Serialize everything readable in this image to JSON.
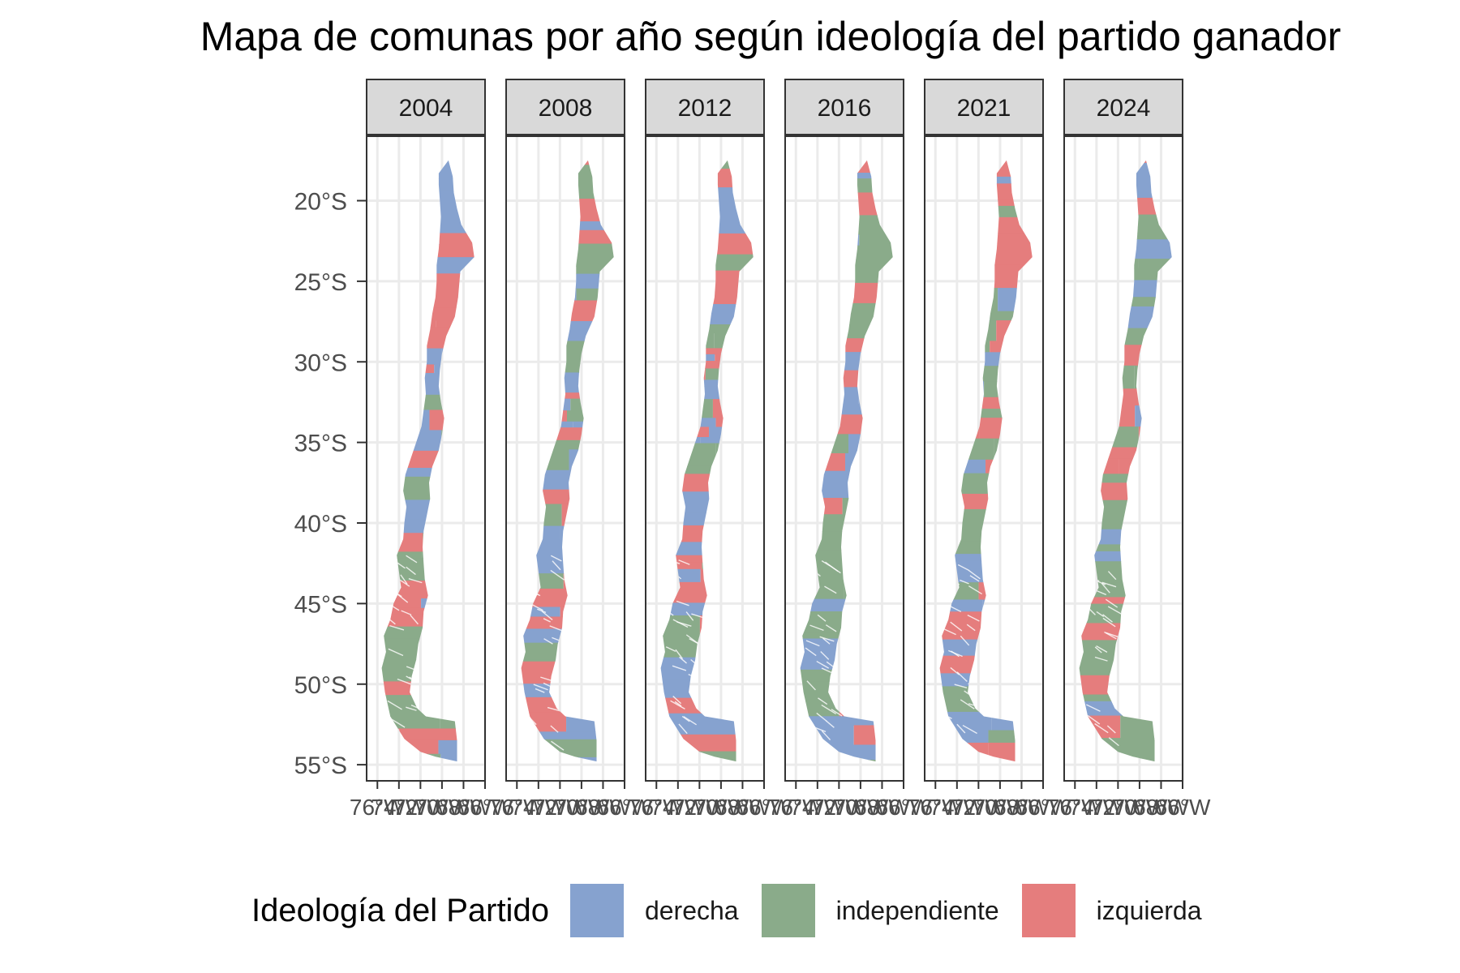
{
  "title": "Mapa de comunas por año según ideología del partido ganador",
  "chart_data": {
    "type": "choropleth-facets",
    "facets": [
      "2004",
      "2008",
      "2012",
      "2016",
      "2021",
      "2024"
    ],
    "y_axis": {
      "ticks": [
        "20°S",
        "25°S",
        "30°S",
        "35°S",
        "40°S",
        "45°S",
        "50°S",
        "55°S"
      ],
      "values": [
        -20,
        -25,
        -30,
        -35,
        -40,
        -45,
        -50,
        -55
      ]
    },
    "x_axis": {
      "ticks": [
        "76°W",
        "74°W",
        "72°W",
        "70°W",
        "68°W",
        "66°W"
      ],
      "values": [
        -76,
        -74,
        -72,
        -70,
        -68,
        -66
      ]
    },
    "grid": true,
    "legend": {
      "title": "Ideología del Partido",
      "position": "bottom",
      "entries": [
        {
          "label": "derecha",
          "color": "#86a2cf"
        },
        {
          "label": "independiente",
          "color": "#8aab8a"
        },
        {
          "label": "izquierda",
          "color": "#e57d7d"
        }
      ]
    }
  }
}
